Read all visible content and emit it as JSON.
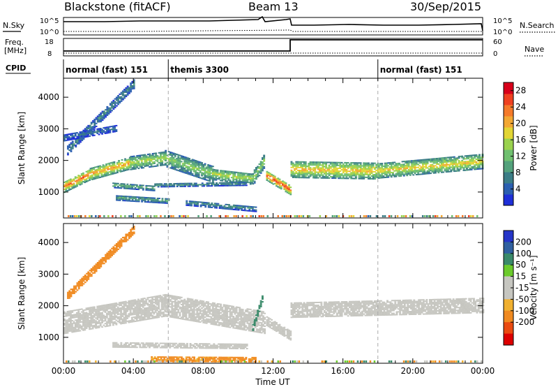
{
  "header": {
    "station": "Blackstone (fitACF)",
    "beam": "Beam 13",
    "date": "30/Sep/2015"
  },
  "noise_panel": {
    "left_label": "N.Sky",
    "right_label": "N.Search",
    "left_ticks": [
      "10^5",
      "10^0"
    ],
    "right_ticks": [
      "10^5",
      "10^0"
    ]
  },
  "freq_panel": {
    "left_label": "Freq.",
    "left_unit": "[MHz]",
    "right_label": "Nave",
    "left_ticks": [
      "18",
      "8"
    ],
    "right_ticks": [
      "60",
      "0"
    ],
    "freq_steps": [
      {
        "from_hour": 0.0,
        "to_hour": 13.0,
        "value": 10.5
      },
      {
        "from_hour": 13.0,
        "to_hour": 24.0,
        "value": 17.5
      }
    ]
  },
  "cpid": {
    "label": "CPID",
    "segments": [
      {
        "label": "normal (fast) 151",
        "start_hour": 0
      },
      {
        "label": "themis 3300",
        "start_hour": 6
      },
      {
        "label": "normal (fast) 151",
        "start_hour": 18
      }
    ]
  },
  "colors": {
    "power": [
      "#1e2fd8",
      "#2b5fb0",
      "#3b7d86",
      "#54a27c",
      "#70c070",
      "#9ad24e",
      "#e2d534",
      "#f2a733",
      "#f57a2a",
      "#ef4120",
      "#d8001a"
    ],
    "velocity": [
      "#2535c8",
      "#3060a0",
      "#3a8a6a",
      "#6ccb2c",
      "#c6c6c0",
      "#c6c6c0",
      "#f0b030",
      "#f08a20",
      "#ea4a10",
      "#dd0000"
    ]
  },
  "chart_data": [
    {
      "type": "heatmap",
      "title": "Power",
      "xlabel": "",
      "ylabel": "Slant Range [km]",
      "xlim": [
        0,
        24
      ],
      "ylim": [
        180,
        4600
      ],
      "x_ticks": [
        "00:00",
        "04:00",
        "08:00",
        "12:00",
        "16:00",
        "20:00",
        "00:00"
      ],
      "y_ticks": [
        1000,
        2000,
        3000,
        4000
      ],
      "colorbar": {
        "label": "Power [dB]",
        "ticks": [
          4,
          8,
          12,
          16,
          20,
          24,
          28
        ],
        "range": [
          0,
          30
        ]
      },
      "bands": [
        {
          "from_hour": 0.0,
          "to_hour": 1.5,
          "center_start": 1150,
          "center_end": 1550,
          "width": 360,
          "value": 24
        },
        {
          "from_hour": 1.5,
          "to_hour": 3.8,
          "center_start": 1550,
          "center_end": 1900,
          "width": 380,
          "value": 22
        },
        {
          "from_hour": 3.8,
          "to_hour": 5.8,
          "center_start": 1900,
          "center_end": 2050,
          "width": 420,
          "value": 16
        },
        {
          "from_hour": 5.8,
          "to_hour": 8.5,
          "center_start": 2050,
          "center_end": 1550,
          "width": 520,
          "value": 14
        },
        {
          "from_hour": 8.5,
          "to_hour": 10.8,
          "center_start": 1550,
          "center_end": 1400,
          "width": 360,
          "value": 16
        },
        {
          "from_hour": 10.8,
          "to_hour": 11.5,
          "center_start": 1400,
          "center_end": 2000,
          "width": 420,
          "value": 15
        },
        {
          "from_hour": 11.6,
          "to_hour": 12.95,
          "center_start": 1500,
          "center_end": 1050,
          "width": 300,
          "value": 27
        },
        {
          "from_hour": 13.0,
          "to_hour": 18.0,
          "center_start": 1700,
          "center_end": 1650,
          "width": 520,
          "value": 20
        },
        {
          "from_hour": 18.0,
          "to_hour": 24.0,
          "center_start": 1650,
          "center_end": 1950,
          "width": 460,
          "value": 19
        },
        {
          "from_hour": 0.2,
          "to_hour": 4.0,
          "center_start": 2300,
          "center_end": 4400,
          "width": 280,
          "value": 8
        },
        {
          "from_hour": 0.0,
          "to_hour": 3.0,
          "center_start": 2700,
          "center_end": 3000,
          "width": 200,
          "value": 6
        },
        {
          "from_hour": 2.8,
          "to_hour": 5.2,
          "center_start": 1200,
          "center_end": 1100,
          "width": 160,
          "value": 12
        },
        {
          "from_hour": 5.2,
          "to_hour": 10.5,
          "center_start": 1200,
          "center_end": 1250,
          "width": 120,
          "value": 9
        },
        {
          "from_hour": 3.0,
          "to_hour": 6.0,
          "center_start": 800,
          "center_end": 700,
          "width": 160,
          "value": 10
        },
        {
          "from_hour": 7.0,
          "to_hour": 11.0,
          "center_start": 650,
          "center_end": 450,
          "width": 180,
          "value": 8
        }
      ]
    },
    {
      "type": "heatmap",
      "title": "Velocity",
      "xlabel": "Time UT",
      "ylabel": "Slant Range [km]",
      "xlim": [
        0,
        24
      ],
      "ylim": [
        180,
        4600
      ],
      "x_ticks": [
        "00:00",
        "04:00",
        "08:00",
        "12:00",
        "16:00",
        "20:00",
        "00:00"
      ],
      "y_ticks": [
        1000,
        2000,
        3000,
        4000
      ],
      "colorbar": {
        "label": "Velocity [m s⁻¹]",
        "ticks": [
          200,
          100,
          50,
          15,
          -15,
          -50,
          -100,
          -200
        ]
      },
      "bands": [
        {
          "from_hour": 0.0,
          "to_hour": 5.8,
          "center_start": 1450,
          "center_end": 2000,
          "width": 700,
          "value": 0
        },
        {
          "from_hour": 5.8,
          "to_hour": 11.5,
          "center_start": 2000,
          "center_end": 1450,
          "width": 700,
          "value": 0
        },
        {
          "from_hour": 11.6,
          "to_hour": 12.95,
          "center_start": 1500,
          "center_end": 1050,
          "width": 300,
          "value": 0
        },
        {
          "from_hour": 13.0,
          "to_hour": 24.0,
          "center_start": 1850,
          "center_end": 2000,
          "width": 480,
          "value": 0
        },
        {
          "from_hour": 0.2,
          "to_hour": 4.0,
          "center_start": 2300,
          "center_end": 4400,
          "width": 260,
          "value": -60
        },
        {
          "from_hour": 2.8,
          "to_hour": 10.5,
          "center_start": 750,
          "center_end": 700,
          "width": 160,
          "value": 0
        },
        {
          "from_hour": 5.0,
          "to_hour": 11.0,
          "center_start": 300,
          "center_end": 280,
          "width": 160,
          "value": -40
        },
        {
          "from_hour": 10.8,
          "to_hour": 11.4,
          "center_start": 1300,
          "center_end": 2300,
          "width": 200,
          "value": 60
        }
      ]
    }
  ]
}
